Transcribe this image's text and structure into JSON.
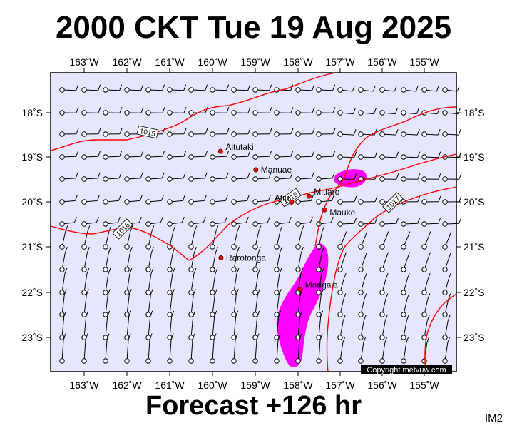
{
  "title": "2000 CKT Tue 19 Aug 2025",
  "footer": "Forecast +126 hr",
  "map_code": "IM2",
  "copyright": "Copyright metvuw.com",
  "lon_labels": [
    "163˚W",
    "162˚W",
    "161˚W",
    "160˚W",
    "159˚W",
    "158˚W",
    "157˚W",
    "156˚W",
    "155˚W"
  ],
  "lat_labels": [
    "18˚S",
    "19˚S",
    "20˚S",
    "21˚S",
    "22˚S",
    "23˚S"
  ],
  "places": [
    {
      "name": "Aitutaki",
      "lon": -159.79,
      "lat": -18.86
    },
    {
      "name": "Manuae",
      "lon": -158.96,
      "lat": -19.27
    },
    {
      "name": "Atiu",
      "lon": -158.12,
      "lat": -19.99
    },
    {
      "name": "Mitiaro",
      "lon": -157.71,
      "lat": -19.86
    },
    {
      "name": "Mauke",
      "lon": -157.34,
      "lat": -20.16
    },
    {
      "name": "Rarotonga",
      "lon": -159.78,
      "lat": -21.23
    },
    {
      "name": "Mangaia",
      "lon": -157.92,
      "lat": -21.93
    }
  ],
  "isobar_labels": [
    "1015",
    "1016",
    "1016",
    "1017"
  ],
  "colors": {
    "map_bg": "#e6e6ff",
    "isobar": "#ff0000",
    "rain": "#ff00ff",
    "place_dot": "#ff0000",
    "copyright_bg": "#000000"
  }
}
